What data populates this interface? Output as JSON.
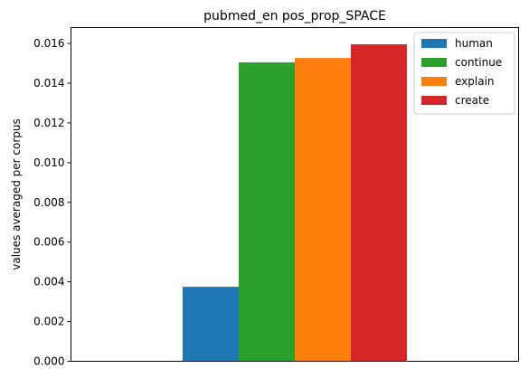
{
  "chart_data": {
    "type": "bar",
    "title": "pubmed_en pos_prop_SPACE",
    "xlabel": "",
    "ylabel": "values averaged per corpus",
    "ylim": [
      0,
      0.0168
    ],
    "yticks": [
      "0.000",
      "0.002",
      "0.004",
      "0.006",
      "0.008",
      "0.010",
      "0.012",
      "0.014",
      "0.016"
    ],
    "grid": false,
    "legend_position": "top-right",
    "series": [
      {
        "name": "human",
        "color": "#1f77b4",
        "value": 0.00375
      },
      {
        "name": "continue",
        "color": "#2ca02c",
        "value": 0.01505
      },
      {
        "name": "explain",
        "color": "#ff7f0e",
        "value": 0.01527
      },
      {
        "name": "create",
        "color": "#d62728",
        "value": 0.01596
      }
    ]
  }
}
